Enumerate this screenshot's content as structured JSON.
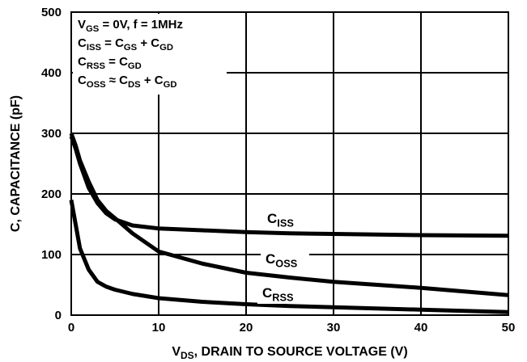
{
  "chart_data": {
    "type": "line",
    "x": [
      0,
      0.5,
      1,
      2,
      3,
      4,
      5,
      7,
      10,
      15,
      20,
      25,
      30,
      40,
      50
    ],
    "series": [
      {
        "name": [
          {
            "text": "C"
          },
          {
            "text": "ISS",
            "sub": true
          }
        ],
        "color": "#000000",
        "values": [
          295,
          275,
          250,
          210,
          185,
          168,
          158,
          148,
          143,
          140,
          137,
          135,
          134,
          132,
          131
        ]
      },
      {
        "name": [
          {
            "text": "C"
          },
          {
            "text": "OSS",
            "sub": true
          }
        ],
        "color": "#000000",
        "values": [
          300,
          280,
          255,
          220,
          190,
          172,
          160,
          135,
          105,
          85,
          70,
          62,
          55,
          45,
          33
        ]
      },
      {
        "name": [
          {
            "text": "C"
          },
          {
            "text": "RSS",
            "sub": true
          }
        ],
        "color": "#000000",
        "values": [
          190,
          150,
          110,
          75,
          55,
          47,
          42,
          35,
          28,
          22,
          18,
          15,
          13,
          9,
          5
        ]
      }
    ],
    "xlim": [
      0,
      50
    ],
    "xticks": [
      0,
      10,
      20,
      30,
      40,
      50
    ],
    "ylim": [
      0,
      500
    ],
    "yticks": [
      0,
      100,
      200,
      300,
      400,
      500
    ],
    "grid": true,
    "xlabel": [
      {
        "text": "V"
      },
      {
        "text": "DS",
        "sub": true
      },
      {
        "text": ", DRAIN TO SOURCE VOLTAGE (V)"
      }
    ],
    "ylabel": "C, CAPACITANCE (pF)",
    "annotation_lines": [
      [
        {
          "text": "V"
        },
        {
          "text": "GS",
          "sub": true
        },
        {
          "text": " = 0V, f = 1MHz"
        }
      ],
      [
        {
          "text": "C"
        },
        {
          "text": "ISS",
          "sub": true
        },
        {
          "text": " = C"
        },
        {
          "text": "GS",
          "sub": true
        },
        {
          "text": " + C"
        },
        {
          "text": "GD",
          "sub": true
        }
      ],
      [
        {
          "text": "C"
        },
        {
          "text": "RSS",
          "sub": true
        },
        {
          "text": " = C"
        },
        {
          "text": "GD",
          "sub": true
        }
      ],
      [
        {
          "text": "C"
        },
        {
          "text": "OSS",
          "sub": true
        },
        {
          "text": " ≈ C"
        },
        {
          "text": "DS",
          "sub": true
        },
        {
          "text": " + C"
        },
        {
          "text": "GD",
          "sub": true
        }
      ]
    ]
  }
}
